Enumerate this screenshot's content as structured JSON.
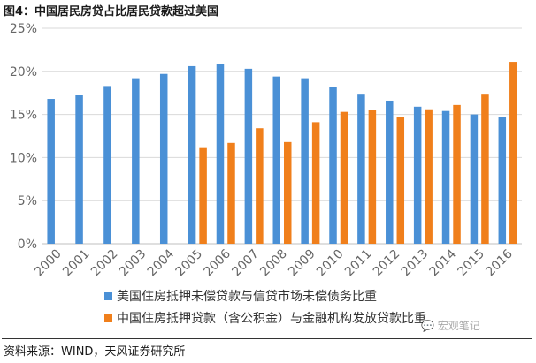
{
  "figure": {
    "title": "图4：中国居民房贷占比居民贷款超过美国",
    "source": "资料来源：WIND，天风证券研究所",
    "watermark": "宏观笔记"
  },
  "colors": {
    "us": "#4A90D6",
    "cn": "#F07F1B",
    "grid": "#D9D9D9",
    "axis": "#BFBFBF"
  },
  "chart_data": {
    "type": "bar",
    "title": "",
    "xlabel": "",
    "ylabel": "",
    "ylim": [
      0,
      25
    ],
    "yticks": [
      "0%",
      "5%",
      "10%",
      "15%",
      "20%",
      "25%"
    ],
    "grid": true,
    "legend_position": "bottom",
    "categories": [
      "2000",
      "2001",
      "2002",
      "2003",
      "2004",
      "2005",
      "2006",
      "2007",
      "2008",
      "2009",
      "2010",
      "2011",
      "2012",
      "2013",
      "2014",
      "2015",
      "2016"
    ],
    "series": [
      {
        "name": "美国住房抵押未偿贷款与信贷市场未偿债务比重",
        "color_key": "us",
        "values": [
          16.8,
          17.3,
          18.3,
          19.2,
          19.7,
          20.6,
          20.9,
          20.3,
          19.4,
          19.2,
          18.2,
          17.4,
          16.6,
          15.9,
          15.4,
          15.0,
          14.7
        ]
      },
      {
        "name": "中国住房抵押贷款（含公积金）与金融机构发放贷款比重",
        "color_key": "cn",
        "values": [
          null,
          null,
          null,
          null,
          null,
          11.1,
          11.7,
          13.4,
          11.8,
          14.1,
          15.3,
          15.5,
          14.7,
          15.6,
          16.1,
          17.4,
          21.1
        ]
      }
    ]
  }
}
